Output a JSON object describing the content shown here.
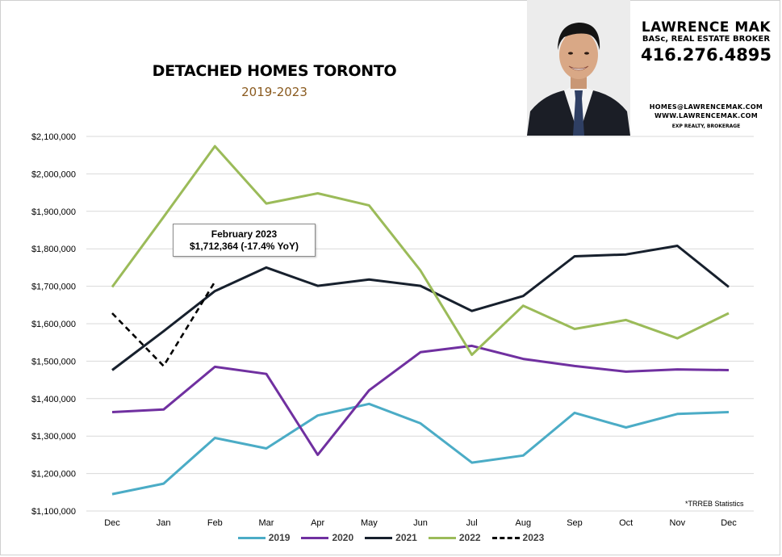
{
  "colors": {
    "s2019": "#4bacc6",
    "s2020": "#7030a0",
    "s2021": "#17202d",
    "s2022": "#9bbb59",
    "s2023": "#000000",
    "grid": "#d9d9d9",
    "subtitle": "#8a5a1e"
  },
  "header": {
    "agent_name": "LAWRENCE MAK",
    "agent_title": "BASc, REAL ESTATE BROKER",
    "phone": "416.276.4895",
    "email": "HOMES@LAWRENCEMAK.COM",
    "website": "WWW.LAWRENCEMAK.COM",
    "brokerage": "EXP REALTY, BROKERAGE",
    "photo_icon": "agent-headshot"
  },
  "annotation": {
    "line1": "February 2023",
    "line2": "$1,712,364  (-17.4%  YoY)"
  },
  "source_note": "*TRREB Statistics",
  "chart_data": {
    "type": "line",
    "title": "DETACHED HOMES TORONTO",
    "subtitle": "2019-2023",
    "xlabel": "",
    "ylabel": "",
    "categories": [
      "Dec",
      "Jan",
      "Feb",
      "Mar",
      "Apr",
      "May",
      "Jun",
      "Jul",
      "Aug",
      "Sep",
      "Oct",
      "Nov",
      "Dec"
    ],
    "ylim": [
      1100000,
      2100000
    ],
    "yticks": [
      1100000,
      1200000,
      1300000,
      1400000,
      1500000,
      1600000,
      1700000,
      1800000,
      1900000,
      2000000,
      2100000
    ],
    "ytick_labels": [
      "$1,100,000",
      "$1,200,000",
      "$1,300,000",
      "$1,400,000",
      "$1,500,000",
      "$1,600,000",
      "$1,700,000",
      "$1,800,000",
      "$1,900,000",
      "$2,000,000",
      "$2,100,000"
    ],
    "grid": "horizontal",
    "legend": "bottom",
    "series": [
      {
        "name": "2019",
        "color_key": "s2019",
        "dashed": false,
        "values": [
          1145000,
          1173000,
          1295000,
          1267000,
          1355000,
          1386000,
          1334000,
          1229000,
          1248000,
          1362000,
          1323000,
          1359000,
          1364000
        ]
      },
      {
        "name": "2020",
        "color_key": "s2020",
        "dashed": false,
        "values": [
          1364000,
          1371000,
          1485000,
          1466000,
          1250000,
          1422000,
          1524000,
          1541000,
          1506000,
          1487000,
          1472000,
          1478000,
          1476000
        ]
      },
      {
        "name": "2021",
        "color_key": "s2021",
        "dashed": false,
        "values": [
          1476000,
          1580000,
          1687000,
          1750000,
          1701000,
          1718000,
          1701000,
          1634000,
          1674000,
          1780000,
          1785000,
          1808000,
          1698000
        ]
      },
      {
        "name": "2022",
        "color_key": "s2022",
        "dashed": false,
        "values": [
          1698000,
          1885000,
          2074000,
          1921000,
          1948000,
          1916000,
          1742000,
          1517000,
          1648000,
          1586000,
          1610000,
          1561000,
          1628000
        ]
      },
      {
        "name": "2023",
        "color_key": "s2023",
        "dashed": true,
        "values": [
          1628000,
          1487000,
          1712364,
          null,
          null,
          null,
          null,
          null,
          null,
          null,
          null,
          null,
          null
        ]
      }
    ]
  }
}
